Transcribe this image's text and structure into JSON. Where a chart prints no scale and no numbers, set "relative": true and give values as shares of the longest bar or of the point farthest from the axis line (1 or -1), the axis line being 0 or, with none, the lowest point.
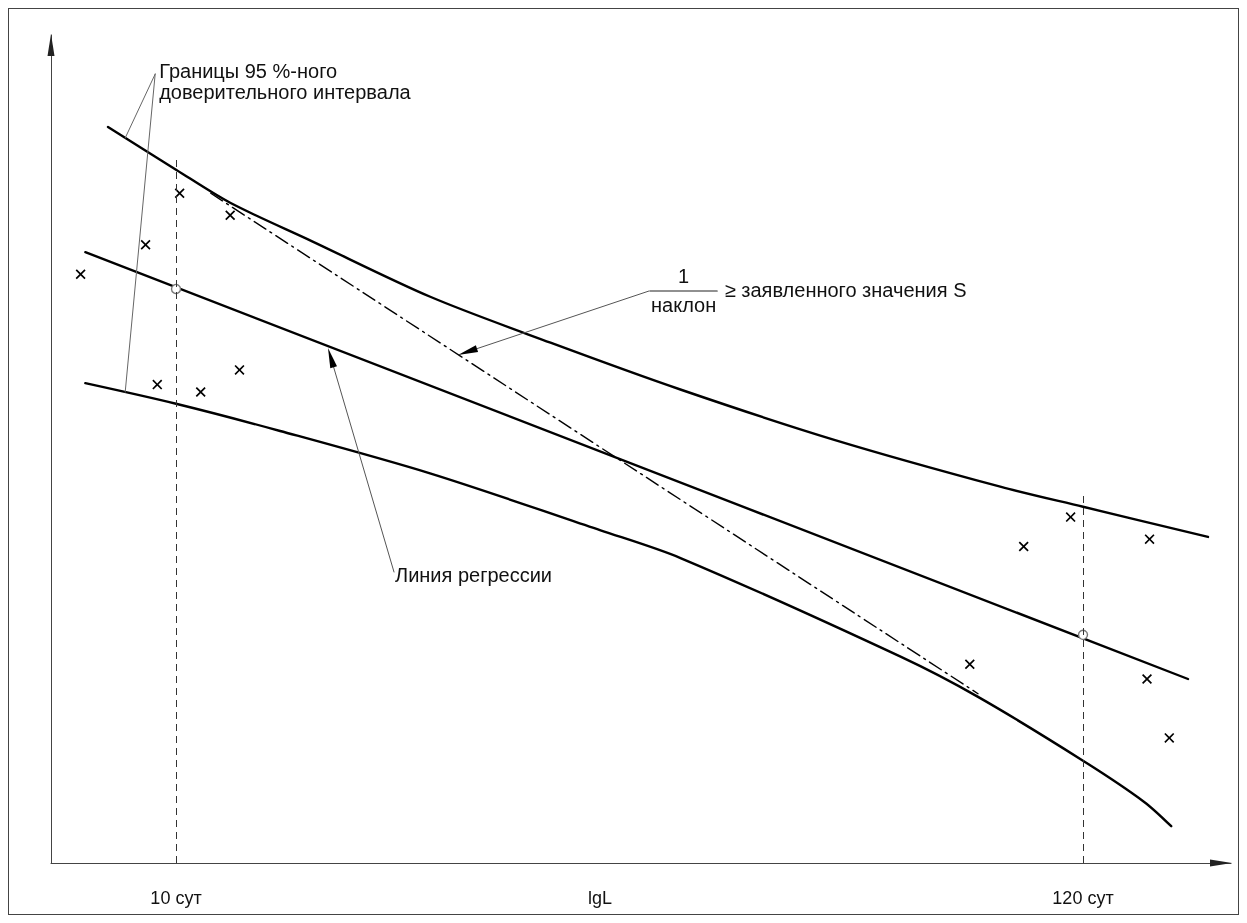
{
  "chart_data": {
    "type": "line",
    "xlabel": "lgL",
    "log": "x",
    "relative": true,
    "tick_labels": "x",
    "xlim": [
      7.1,
      180
    ],
    "xticks": [
      {
        "value": 10,
        "label": "10 сут"
      },
      {
        "value": 120,
        "label": "120 сут"
      }
    ],
    "series": [
      {
        "color": "#000000",
        "marker": "none",
        "x": [
          8.3,
          10,
          11.6,
          14.5,
          20.1,
          27.9,
          39.9,
          60.7,
          95.9,
          120,
          169
        ],
        "values": [
          1,
          0.942,
          0.897,
          0.845,
          0.769,
          0.707,
          0.643,
          0.575,
          0.511,
          0.484,
          0.443
        ]
      },
      {
        "color": "#000000",
        "marker": "none",
        "x": [
          7.8,
          160
        ],
        "values": [
          0.83,
          0.25
        ]
      },
      {
        "color": "#000000",
        "marker": "none",
        "x": [
          7.8,
          10,
          13.3,
          20.1,
          32,
          39.9,
          72.9,
          89.9,
          120,
          141.9,
          152.8
        ],
        "values": [
          0.652,
          0.624,
          0.587,
          0.529,
          0.452,
          0.414,
          0.28,
          0.226,
          0.139,
          0.083,
          0.05
        ]
      },
      {
        "color": "#000000",
        "marker": "none",
        "line_style": "dashdot",
        "x": [
          11,
          90
        ],
        "values": [
          0.91,
          0.23
        ]
      },
      {
        "type": "scatter",
        "color": "#000000",
        "marker": "cross",
        "x": [
          7.7,
          9.2,
          10.1,
          11.6,
          9.5,
          10.7,
          11.9,
          88,
          102,
          116,
          144,
          143,
          152
        ],
        "values": [
          0.8,
          0.84,
          0.91,
          0.88,
          0.65,
          0.64,
          0.67,
          0.27,
          0.43,
          0.47,
          0.44,
          0.25,
          0.17
        ]
      },
      {
        "type": "scatter",
        "color": "#777777",
        "marker": "circle",
        "x": [
          10,
          120
        ],
        "values": [
          0.78,
          0.31
        ]
      }
    ],
    "ref_lines": [
      {
        "axis": "x",
        "value": 10,
        "line_style": "dashed",
        "color": "#333333"
      },
      {
        "axis": "x",
        "value": 120,
        "line_style": "dashed",
        "color": "#333333"
      }
    ],
    "annotations": [
      {
        "text": "Границы 95 %-ного\nдоверительного интервала",
        "x": 8.7,
        "y": 0.985
      },
      "Линия регрессии",
      "$^{1}$$_{наклон}$ ≥ заявленного значения S"
    ]
  }
}
